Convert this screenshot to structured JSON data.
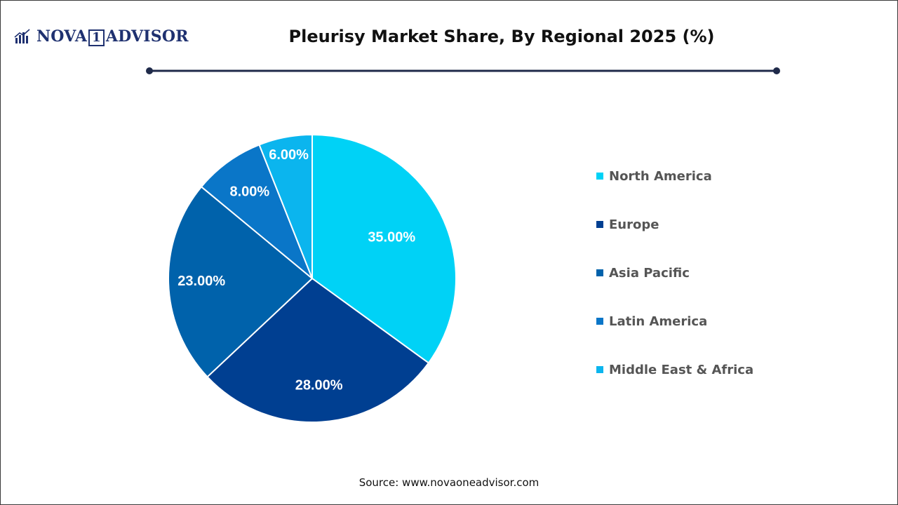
{
  "brand": {
    "name_left": "NOVA",
    "name_number": "1",
    "name_right": "ADVISOR",
    "logo_icon": "bar-chart-icon",
    "color": "#1f3170"
  },
  "chart_data": {
    "type": "pie",
    "title": "Pleurisy Market Share, By Regional 2025 (%)",
    "categories": [
      "North America",
      "Europe",
      "Asia Pacific",
      "Latin America",
      "Middle East & Africa"
    ],
    "values": [
      35.0,
      28.0,
      23.0,
      8.0,
      6.0
    ],
    "value_labels": [
      "35.00%",
      "28.00%",
      "23.00%",
      "8.00%",
      "6.00%"
    ],
    "colors": [
      "#00d2f6",
      "#003f91",
      "#0062ab",
      "#0a76c8",
      "#0bb5ee"
    ],
    "legend_position": "right",
    "start_angle": "12 o'clock, clockwise"
  },
  "source": "Source: www.novaoneadvisor.com"
}
